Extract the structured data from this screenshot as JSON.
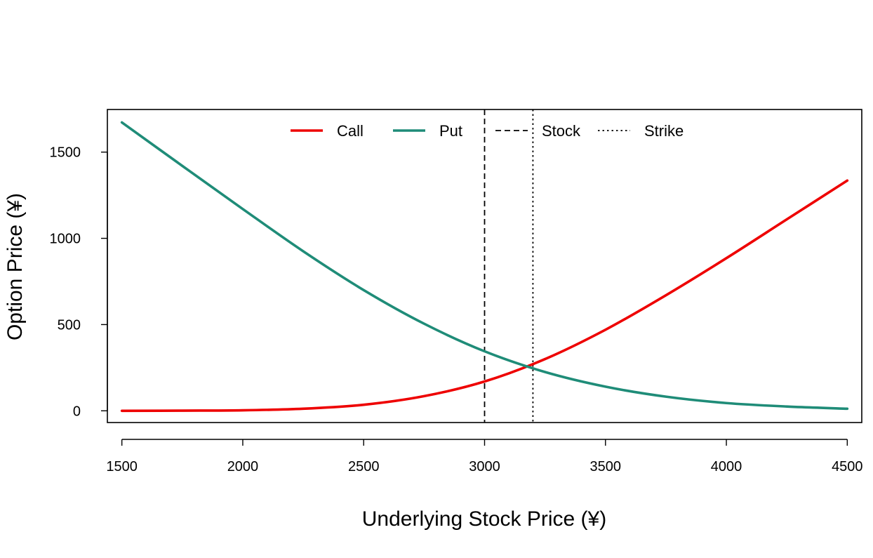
{
  "chart_data": {
    "type": "line",
    "xlabel": "Underlying Stock Price (¥)",
    "ylabel": "Option Price (¥)",
    "xlim": [
      1440,
      4560
    ],
    "ylim": [
      -68,
      1747
    ],
    "x_ticks": [
      "1500",
      "2000",
      "2500",
      "3000",
      "3500",
      "4000",
      "4500"
    ],
    "y_ticks": [
      "0",
      "500",
      "1000",
      "1500"
    ],
    "x": [
      1500,
      1750,
      2000,
      2250,
      2500,
      2750,
      3000,
      3250,
      3500,
      3750,
      4000,
      4250,
      4500
    ],
    "series": [
      {
        "name": "Call",
        "color": "#ee0000",
        "values": [
          0,
          1,
          3,
          12,
          35,
          85,
          170,
          300,
          470,
          670,
          885,
          1110,
          1335
        ]
      },
      {
        "name": "Put",
        "color": "#1f8c78",
        "values": [
          1672,
          1420,
          1170,
          925,
          700,
          505,
          345,
          225,
          140,
          82,
          45,
          25,
          12
        ]
      }
    ],
    "vlines": [
      {
        "name": "Stock",
        "x": 3000,
        "style": "dashed"
      },
      {
        "name": "Strike",
        "x": 3200,
        "style": "dotted"
      }
    ],
    "legend": {
      "placement": "top-center",
      "entries": [
        "Call",
        "Put",
        "Stock",
        "Strike"
      ]
    },
    "grid": false
  }
}
